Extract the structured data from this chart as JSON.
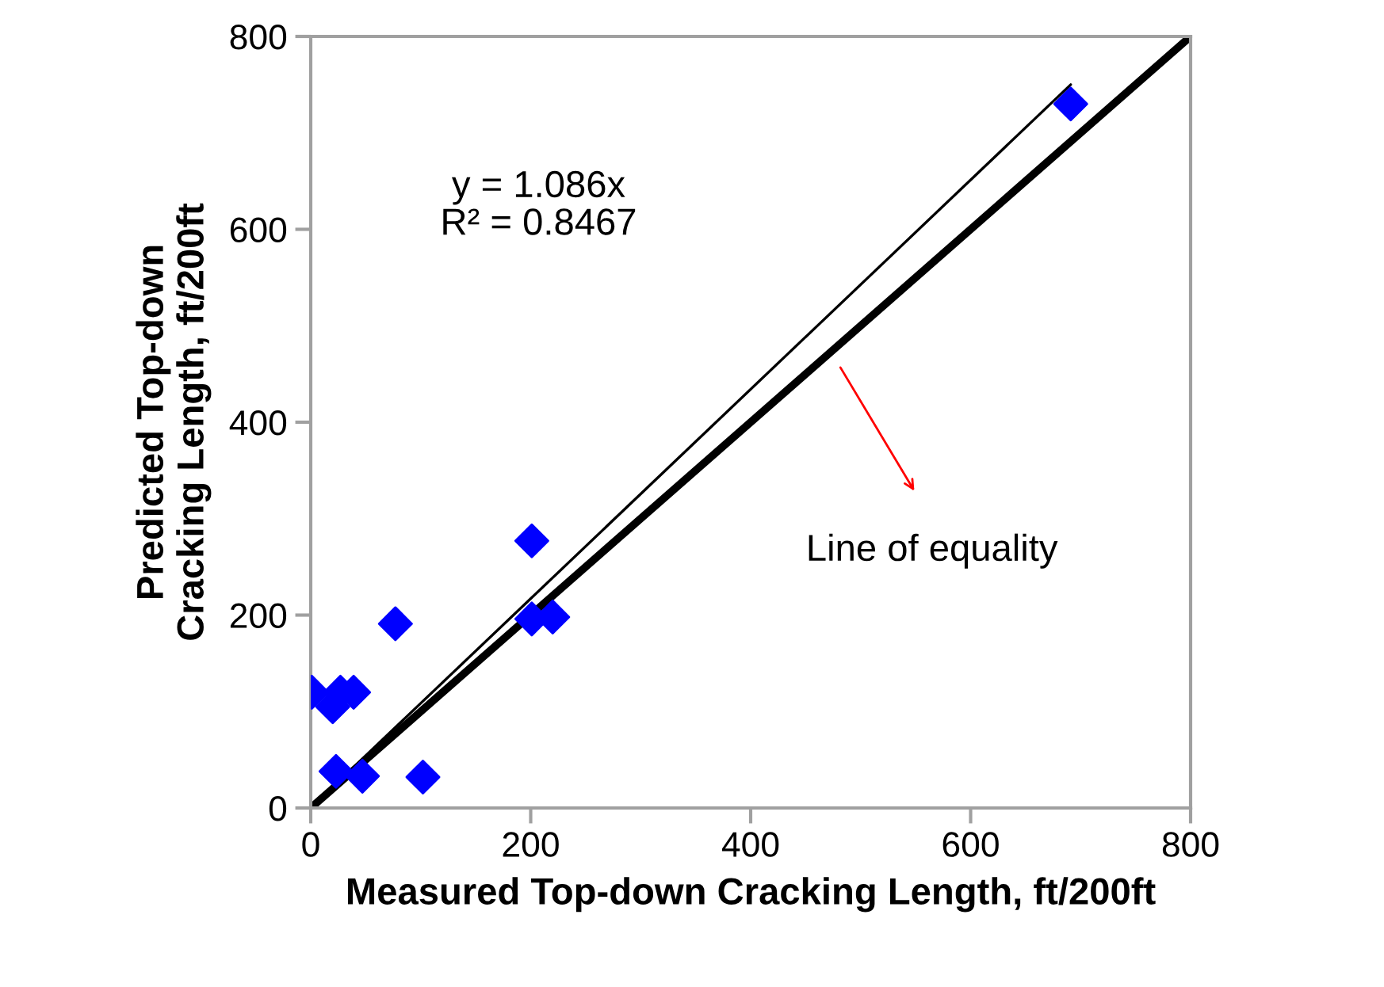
{
  "chart_data": {
    "type": "scatter",
    "xlabel": "Measured Top-down Cracking Length, ft/200ft",
    "ylabel": "Predicted Top-down\nCracking Length, ft/200ft",
    "x": [
      1,
      20,
      27,
      39,
      77,
      201,
      201,
      220,
      23,
      47,
      102,
      691
    ],
    "series": [
      {
        "color": "#0000ff",
        "marker": "diamond",
        "values": [
          120,
          105,
          120,
          120,
          191,
          277,
          196,
          198,
          38,
          33,
          32,
          730
        ]
      },
      {
        "type": "line",
        "color": "#000000",
        "x": [
          0,
          691
        ],
        "values": [
          0,
          750
        ],
        "line_style": "solid"
      },
      {
        "type": "line",
        "color": "#000000",
        "x": [
          0,
          800
        ],
        "values": [
          0,
          800
        ],
        "line_style": "solid"
      }
    ],
    "xlim": [
      0,
      800
    ],
    "ylim": [
      0,
      800
    ],
    "xticks": [
      0,
      200,
      400,
      600,
      800
    ],
    "yticks": [
      0,
      200,
      400,
      600,
      800
    ],
    "annotations": [
      "y = 1.086x\nR² = 0.8467",
      "Line of equality"
    ],
    "grid": false,
    "legend": false
  }
}
